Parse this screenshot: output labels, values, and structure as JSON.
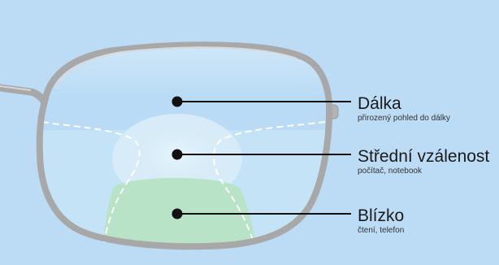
{
  "colors": {
    "background": "#bcdcf6",
    "lens_fill": "#c4e3f6",
    "lens_far": "#b9dbf5",
    "lens_mid": "#d7ecf8",
    "lens_near": "#b8e3c6",
    "frame": "#a8a8a8",
    "marker": "#111111"
  },
  "zones": [
    {
      "id": "far",
      "title": "Dálka",
      "subtitle": "přirozený pohled do dálky"
    },
    {
      "id": "intermediate",
      "title": "Střední vzálenost",
      "subtitle": "počítač, notebook"
    },
    {
      "id": "near",
      "title": "Blízko",
      "subtitle": "čtení, telefon"
    }
  ]
}
